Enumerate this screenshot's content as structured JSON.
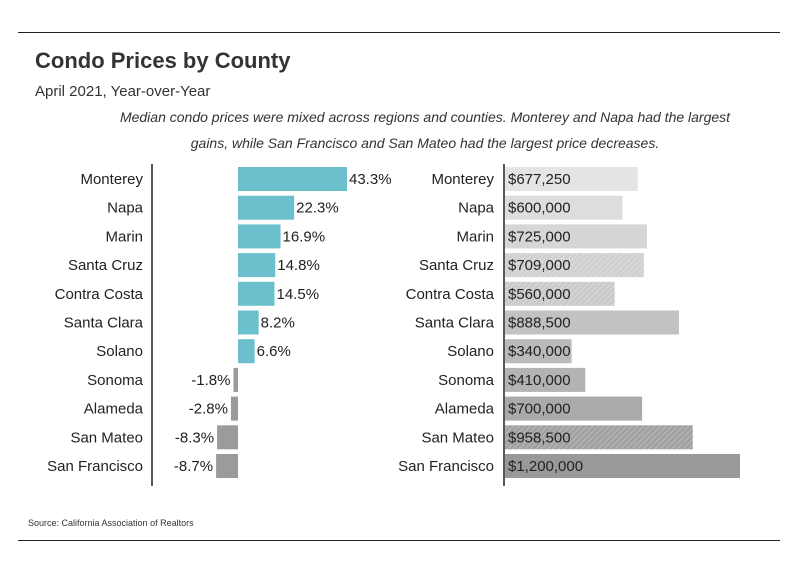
{
  "header": {
    "title": "Condo Prices by County",
    "subtitle": "April 2021, Year-over-Year",
    "description": "Median condo prices were mixed across regions and counties. Monterey and Napa had the largest gains, while San Francisco and San Mateo had the largest price decreases."
  },
  "footer": {
    "source": "Source:  California Association of Realtors"
  },
  "chart_data": [
    {
      "type": "bar",
      "orientation": "horizontal",
      "categories": [
        "Monterey",
        "Napa",
        "Marin",
        "Santa Cruz",
        "Contra Costa",
        "Santa Clara",
        "Solano",
        "Sonoma",
        "Alameda",
        "San Mateo",
        "San Francisco"
      ],
      "values": [
        43.3,
        22.3,
        16.9,
        14.8,
        14.5,
        8.2,
        6.6,
        -1.8,
        -2.8,
        -8.3,
        -8.7
      ],
      "value_labels": [
        "43.3%",
        "22.3%",
        "16.9%",
        "14.8%",
        "14.5%",
        "8.2%",
        "6.6%",
        "-1.8%",
        "-2.8%",
        "-8.3%",
        "-8.7%"
      ],
      "xlim": [
        -43.3,
        43.3
      ],
      "grid": false,
      "colors": {
        "positive": "#6cc0cd",
        "negative": "#9b9b9b"
      }
    },
    {
      "type": "bar",
      "orientation": "horizontal",
      "categories": [
        "Monterey",
        "Napa",
        "Marin",
        "Santa Cruz",
        "Contra Costa",
        "Santa Clara",
        "Solano",
        "Sonoma",
        "Alameda",
        "San Mateo",
        "San Francisco"
      ],
      "values": [
        677250,
        600000,
        725000,
        709000,
        560000,
        888500,
        340000,
        410000,
        700000,
        958500,
        1200000
      ],
      "value_labels": [
        "$677,250",
        "$600,000",
        "$725,000",
        "$709,000",
        "$560,000",
        "$888,500",
        "$340,000",
        "$410,000",
        "$700,000",
        "$958,500",
        "$1,200,000"
      ],
      "xlim": [
        0,
        1200000
      ],
      "grid": false,
      "colors": [
        "#e4e4e4",
        "#dddddd",
        "#d6d6d6",
        "#d0d0d0",
        "#cacaca",
        "#c2c2c2",
        "#bababa",
        "#b3b3b3",
        "#aaaaaa",
        "#a1a1a1",
        "#999999"
      ],
      "hatched": [
        "Santa Cruz",
        "Contra Costa",
        "San Mateo"
      ]
    }
  ]
}
